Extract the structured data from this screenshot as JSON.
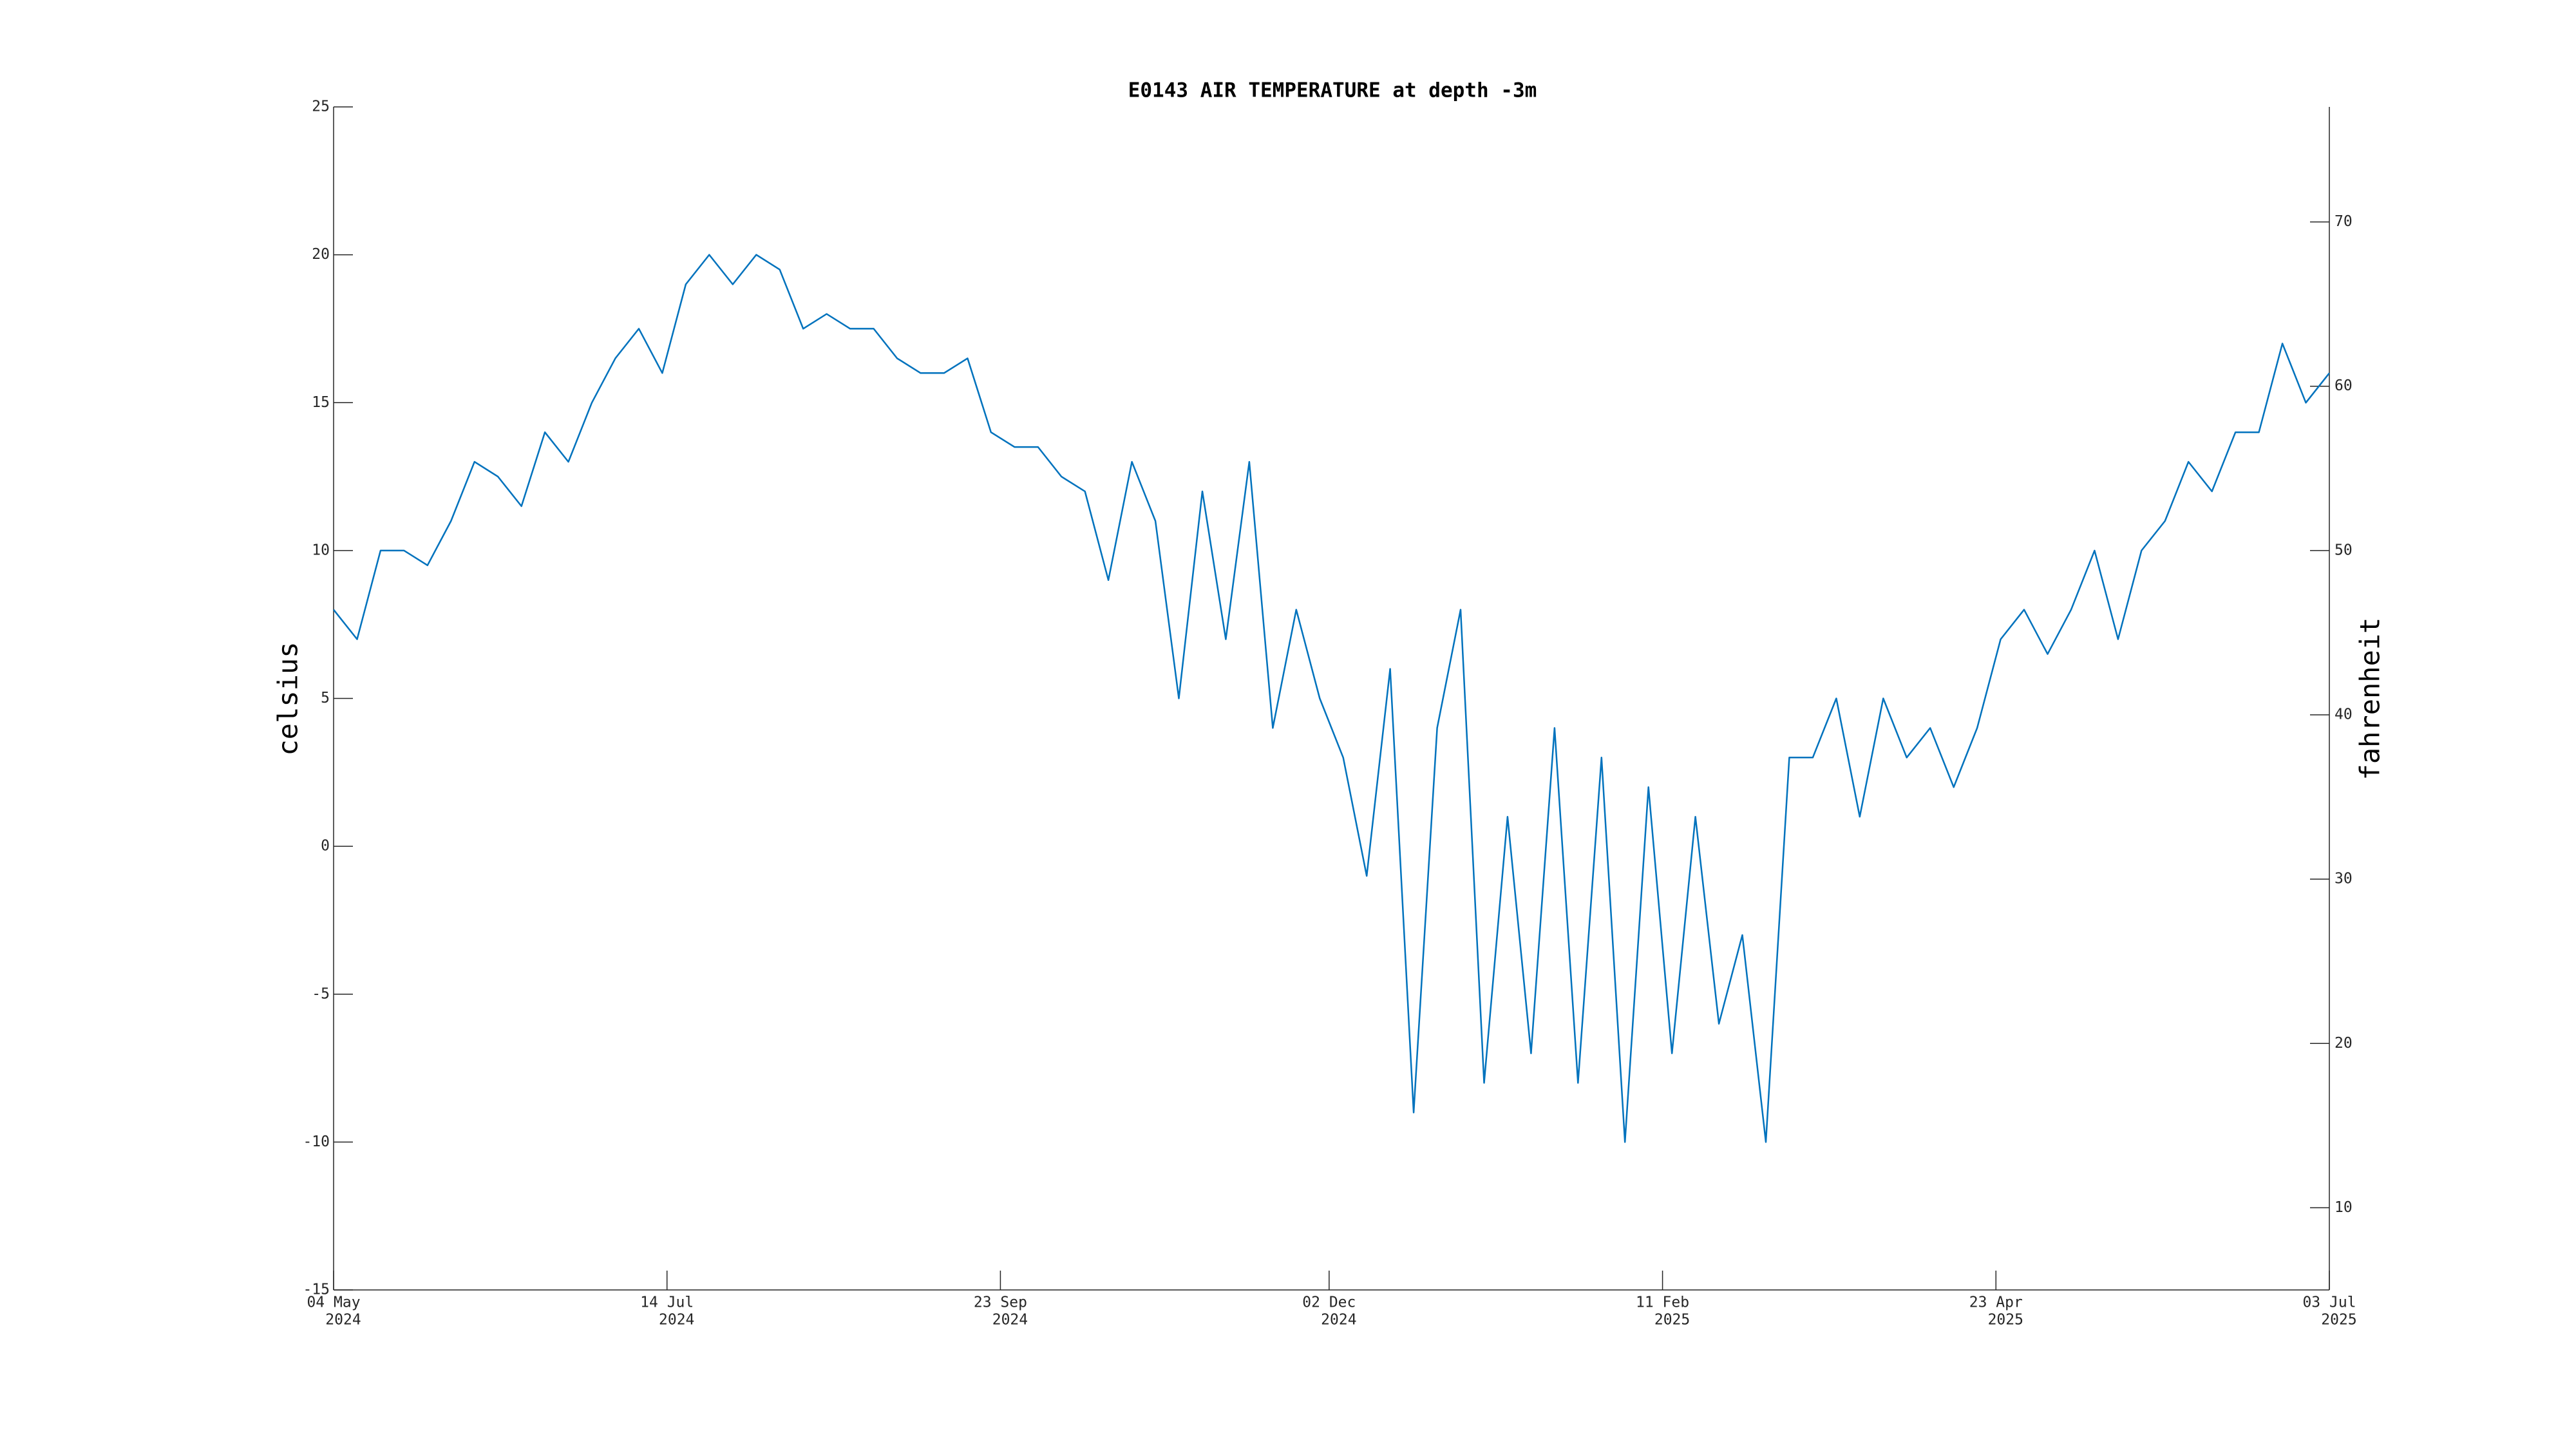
{
  "chart_data": {
    "type": "line",
    "title": "E0143 AIR TEMPERATURE at depth -3m",
    "y_label": "celsius",
    "y2_label": "fahrenheit",
    "x": [
      "2024-05-04",
      "2024-05-09",
      "2024-05-14",
      "2024-05-19",
      "2024-05-24",
      "2024-05-29",
      "2024-06-03",
      "2024-06-08",
      "2024-06-13",
      "2024-06-18",
      "2024-06-23",
      "2024-06-28",
      "2024-07-03",
      "2024-07-08",
      "2024-07-13",
      "2024-07-18",
      "2024-07-23",
      "2024-07-28",
      "2024-08-02",
      "2024-08-07",
      "2024-08-12",
      "2024-08-17",
      "2024-08-22",
      "2024-08-27",
      "2024-09-01",
      "2024-09-06",
      "2024-09-11",
      "2024-09-16",
      "2024-09-21",
      "2024-09-26",
      "2024-10-01",
      "2024-10-06",
      "2024-10-11",
      "2024-10-16",
      "2024-10-21",
      "2024-10-26",
      "2024-10-31",
      "2024-11-05",
      "2024-11-10",
      "2024-11-15",
      "2024-11-20",
      "2024-11-25",
      "2024-11-30",
      "2024-12-05",
      "2024-12-10",
      "2024-12-15",
      "2024-12-20",
      "2024-12-25",
      "2024-12-30",
      "2025-01-04",
      "2025-01-09",
      "2025-01-14",
      "2025-01-19",
      "2025-01-24",
      "2025-01-29",
      "2025-02-03",
      "2025-02-08",
      "2025-02-13",
      "2025-02-18",
      "2025-02-23",
      "2025-02-28",
      "2025-03-05",
      "2025-03-10",
      "2025-03-15",
      "2025-03-20",
      "2025-03-25",
      "2025-03-30",
      "2025-04-04",
      "2025-04-09",
      "2025-04-14",
      "2025-04-19",
      "2025-04-24",
      "2025-04-29",
      "2025-05-04",
      "2025-05-09",
      "2025-05-14",
      "2025-05-19",
      "2025-05-24",
      "2025-05-29",
      "2025-06-03",
      "2025-06-08",
      "2025-06-13",
      "2025-06-18",
      "2025-06-23",
      "2025-06-28",
      "2025-07-03"
    ],
    "series": [
      {
        "color": "#0072bd",
        "values": [
          8,
          7,
          10,
          10,
          9.5,
          11,
          13,
          12.5,
          11.5,
          14,
          13,
          15,
          16.5,
          17.5,
          16,
          19,
          20,
          19,
          20,
          19.5,
          17.5,
          18,
          17.5,
          17.5,
          16.5,
          16,
          16,
          16.5,
          14,
          13.5,
          13.5,
          12.5,
          12,
          9,
          13,
          11,
          5,
          12,
          7,
          13,
          4,
          8,
          5,
          3,
          -1,
          6,
          -9,
          4,
          8,
          -8,
          1,
          -7,
          4,
          -8,
          3,
          -10,
          2,
          -7,
          1,
          -6,
          -3,
          -10,
          3,
          3,
          5,
          1,
          5,
          3,
          4,
          2,
          4,
          7,
          8,
          6.5,
          8,
          10,
          7,
          10,
          11,
          13,
          12,
          14,
          14,
          17,
          15,
          16
        ]
      }
    ],
    "xlim": [
      "2024-05-04",
      "2025-07-03"
    ],
    "xticks": [
      {
        "value": "2024-05-04",
        "label": [
          "04 May",
          "2024"
        ]
      },
      {
        "value": "2024-07-14",
        "label": [
          "14 Jul",
          "2024"
        ]
      },
      {
        "value": "2024-09-23",
        "label": [
          "23 Sep",
          "2024"
        ]
      },
      {
        "value": "2024-12-02",
        "label": [
          "02 Dec",
          "2024"
        ]
      },
      {
        "value": "2025-02-11",
        "label": [
          "11 Feb",
          "2025"
        ]
      },
      {
        "value": "2025-04-23",
        "label": [
          "23 Apr",
          "2025"
        ]
      },
      {
        "value": "2025-07-03",
        "label": [
          "03 Jul",
          "2025"
        ]
      }
    ],
    "ylim": [
      -15,
      25
    ],
    "yticks": [
      -15,
      -10,
      -5,
      0,
      5,
      10,
      15,
      20,
      25
    ],
    "y2lim": [
      5,
      77
    ],
    "y2ticks": [
      10,
      20,
      30,
      40,
      50,
      60,
      70
    ],
    "grid": false
  }
}
